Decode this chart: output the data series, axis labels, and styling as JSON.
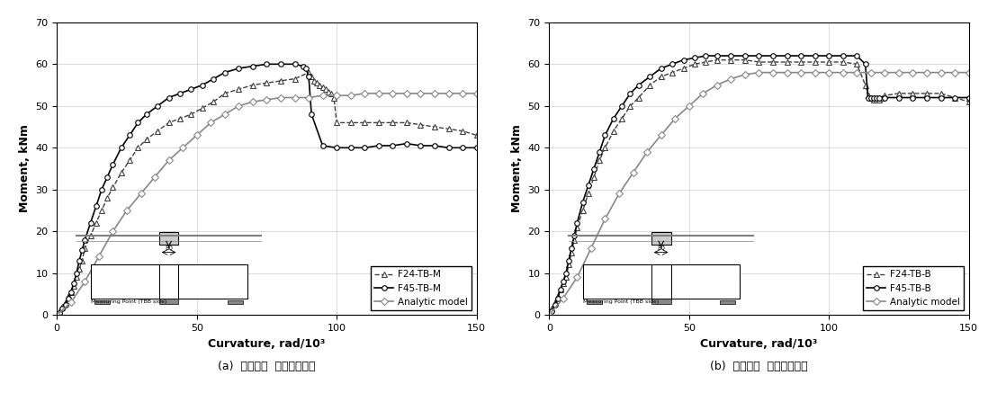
{
  "plot_a": {
    "title": "(a)  저하중용  열교차단장치",
    "xlabel": "Curvature, rad/10³",
    "ylabel": "Moment, kNm",
    "xlim": [
      0,
      150
    ],
    "ylim": [
      0,
      70
    ],
    "xticks": [
      0,
      50,
      100,
      150
    ],
    "yticks": [
      0,
      10,
      20,
      30,
      40,
      50,
      60,
      70
    ],
    "legend": [
      "F24-TB-M",
      "F45-TB-M",
      "Analytic model"
    ],
    "F24_TB_M_x": [
      1,
      2,
      3,
      4,
      5,
      6,
      7,
      8,
      9,
      10,
      12,
      14,
      16,
      18,
      20,
      23,
      26,
      29,
      32,
      36,
      40,
      44,
      48,
      52,
      56,
      60,
      65,
      70,
      75,
      80,
      85,
      90,
      91,
      92,
      93,
      94,
      95,
      96,
      97,
      98,
      99,
      100,
      105,
      110,
      115,
      120,
      125,
      130,
      135,
      140,
      145,
      150
    ],
    "F24_TB_M_y": [
      1,
      2,
      3,
      4.5,
      5.5,
      7,
      9,
      11,
      13,
      16,
      19,
      22,
      25,
      28,
      30.5,
      34,
      37,
      40,
      42,
      44,
      46,
      47,
      48,
      49.5,
      51,
      53,
      54,
      55,
      55.5,
      56,
      56.5,
      58,
      57,
      56,
      55.5,
      55,
      54.5,
      54,
      53.5,
      53,
      52,
      46,
      46,
      46,
      46,
      46,
      46,
      45.5,
      45,
      44.5,
      44,
      43
    ],
    "F45_TB_M_x": [
      1,
      2,
      3,
      4,
      5,
      6,
      7,
      8,
      9,
      10,
      12,
      14,
      16,
      18,
      20,
      23,
      26,
      29,
      32,
      36,
      40,
      44,
      48,
      52,
      56,
      60,
      65,
      70,
      75,
      80,
      85,
      88,
      89,
      90,
      91,
      95,
      100,
      105,
      110,
      115,
      120,
      125,
      130,
      135,
      140,
      145,
      150
    ],
    "F45_TB_M_y": [
      0.5,
      1.5,
      2.5,
      4,
      5.5,
      7.5,
      10,
      13,
      15.5,
      18,
      22,
      26,
      30,
      33,
      36,
      40,
      43,
      46,
      48,
      50,
      52,
      53,
      54,
      55,
      56.5,
      58,
      59,
      59.5,
      60,
      60,
      60,
      59.5,
      59,
      57,
      48,
      40.5,
      40,
      40,
      40,
      40.5,
      40.5,
      41,
      40.5,
      40.5,
      40,
      40,
      40
    ],
    "analytic_x": [
      0,
      5,
      10,
      15,
      20,
      25,
      30,
      35,
      40,
      45,
      50,
      55,
      60,
      65,
      70,
      75,
      80,
      85,
      90,
      95,
      100,
      105,
      110,
      115,
      120,
      125,
      130,
      135,
      140,
      145,
      150
    ],
    "analytic_y": [
      0,
      3,
      8,
      14,
      20,
      25,
      29,
      33,
      37,
      40,
      43,
      46,
      48,
      50,
      51,
      51.5,
      52,
      52,
      52,
      52.5,
      52.5,
      52.5,
      53,
      53,
      53,
      53,
      53,
      53,
      53,
      53,
      53
    ]
  },
  "plot_b": {
    "title": "(b)  고하중용  열교차단장치",
    "xlabel": "Curvature, rad/10³",
    "ylabel": "Moment, kNm",
    "xlim": [
      0,
      150
    ],
    "ylim": [
      0,
      70
    ],
    "xticks": [
      0,
      50,
      100,
      150
    ],
    "yticks": [
      0,
      10,
      20,
      30,
      40,
      50,
      60,
      70
    ],
    "legend": [
      "F24-TB-B",
      "F45-TB-B",
      "Analytic model"
    ],
    "F24_TB_B_x": [
      1,
      2,
      3,
      4,
      5,
      6,
      7,
      8,
      9,
      10,
      12,
      14,
      16,
      18,
      20,
      23,
      26,
      29,
      32,
      36,
      40,
      44,
      48,
      52,
      56,
      60,
      65,
      70,
      75,
      80,
      85,
      90,
      95,
      100,
      105,
      110,
      113,
      114,
      115,
      116,
      117,
      118,
      119,
      120,
      125,
      130,
      135,
      140,
      145,
      150
    ],
    "F24_TB_B_y": [
      1.5,
      3,
      4.5,
      6,
      7.5,
      9,
      12,
      15,
      18,
      21,
      25,
      29,
      33,
      37,
      40,
      44,
      47,
      50,
      52,
      55,
      57,
      58,
      59,
      60,
      60.5,
      61,
      61,
      61,
      60.5,
      60.5,
      60.5,
      60.5,
      60.5,
      60.5,
      60.5,
      60,
      55,
      52.5,
      52,
      51.5,
      51.5,
      51.5,
      52,
      52.5,
      53,
      53,
      53,
      53,
      52,
      51
    ],
    "F45_TB_B_x": [
      1,
      2,
      3,
      4,
      5,
      6,
      7,
      8,
      9,
      10,
      12,
      14,
      16,
      18,
      20,
      23,
      26,
      29,
      32,
      36,
      40,
      44,
      48,
      52,
      56,
      60,
      65,
      70,
      75,
      80,
      85,
      90,
      95,
      100,
      105,
      110,
      113,
      114,
      115,
      116,
      117,
      118,
      120,
      125,
      130,
      135,
      140,
      145,
      150
    ],
    "F45_TB_B_y": [
      1,
      2.5,
      4,
      6,
      8,
      10,
      13,
      16,
      19,
      22,
      27,
      31,
      35,
      39,
      43,
      47,
      50,
      53,
      55,
      57,
      59,
      60,
      61,
      61.5,
      62,
      62,
      62,
      62,
      62,
      62,
      62,
      62,
      62,
      62,
      62,
      62,
      60,
      52,
      52,
      52,
      52,
      52,
      52,
      52,
      52,
      52,
      52,
      52,
      52
    ],
    "analytic_x": [
      0,
      5,
      10,
      15,
      20,
      25,
      30,
      35,
      40,
      45,
      50,
      55,
      60,
      65,
      70,
      75,
      80,
      85,
      90,
      95,
      100,
      105,
      110,
      115,
      120,
      125,
      130,
      135,
      140,
      145,
      150
    ],
    "analytic_y": [
      0,
      4,
      9,
      16,
      23,
      29,
      34,
      39,
      43,
      47,
      50,
      53,
      55,
      56.5,
      57.5,
      58,
      58,
      58,
      58,
      58,
      58,
      58,
      58,
      58,
      58,
      58,
      58,
      58,
      58,
      58,
      58
    ]
  },
  "colors": {
    "F24": "#404040",
    "F45": "#000000",
    "analytic": "#888888"
  }
}
